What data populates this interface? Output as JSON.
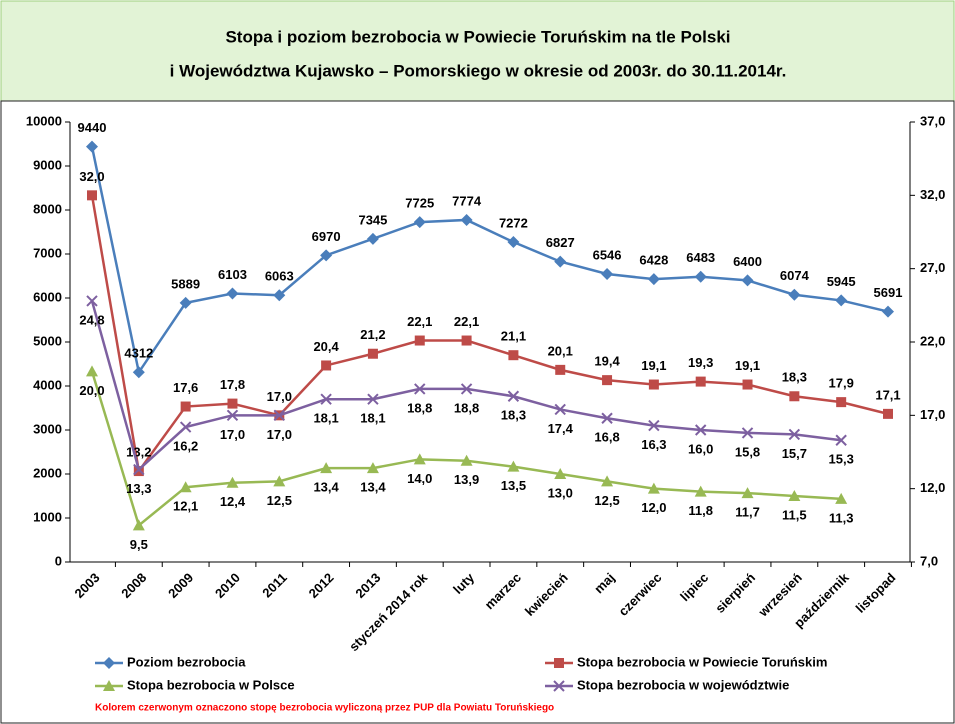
{
  "chart_data": {
    "type": "line",
    "title": [
      "Stopa i poziom bezrobocia w Powiecie Toruńskim na tle Polski",
      "i Województwa Kujawsko – Pomorskiego w okresie od 2003r. do 30.11.2014r."
    ],
    "note": "Kolorem czerwonym oznaczono stopę bezrobocia wyliczoną przez PUP dla Powiatu Toruńskiego",
    "categories": [
      "2003",
      "2008",
      "2009",
      "2010",
      "2011",
      "2012",
      "2013",
      "styczeń 2014 rok",
      "luty",
      "marzec",
      "kwiecień",
      "maj",
      "czerwiec",
      "lipiec",
      "sierpień",
      "wrzesień",
      "październik",
      "listopad"
    ],
    "ylim": [
      0,
      10000
    ],
    "yticks": [
      0,
      1000,
      2000,
      3000,
      4000,
      5000,
      6000,
      7000,
      8000,
      9000,
      10000
    ],
    "y2lim": [
      7,
      37
    ],
    "y2ticks": [
      {
        "value": 7,
        "label": "7,0"
      },
      {
        "value": 12,
        "label": "12,0"
      },
      {
        "value": 17,
        "label": "17,0"
      },
      {
        "value": 22,
        "label": "22,0"
      },
      {
        "value": 27,
        "label": "27,0"
      },
      {
        "value": 32,
        "label": "32,0"
      },
      {
        "value": 37,
        "label": "37,0"
      }
    ],
    "series": [
      {
        "name": "Poziom bezrobocia",
        "color": "#4a7ebb",
        "marker": "diamond",
        "values": [
          9440,
          4312,
          5889,
          6103,
          6063,
          6970,
          7345,
          7725,
          7774,
          7272,
          6827,
          6546,
          6428,
          6483,
          6400,
          6074,
          5945,
          5691
        ]
      },
      {
        "name": "Stopa bezrobocia w Powiecie Toruńskim",
        "color": "#be4b48",
        "marker": "square",
        "axis": "y2",
        "last_label_color": "#ff0000",
        "values": [
          32.0,
          13.2,
          17.6,
          17.8,
          17.0,
          20.4,
          21.2,
          22.1,
          22.1,
          21.1,
          20.1,
          19.4,
          19.1,
          19.3,
          19.1,
          18.3,
          17.9,
          17.1
        ],
        "value_labels": [
          "32,0",
          "13,2",
          "17,6",
          "17,8",
          "17,0",
          "20,4",
          "21,2",
          "22,1",
          "22,1",
          "21,1",
          "20,1",
          "19,4",
          "19,1",
          "19,3",
          "19,1",
          "18,3",
          "17,9",
          "17,1"
        ]
      },
      {
        "name": "Stopa bezrobocia w Polsce",
        "color": "#98b954",
        "marker": "triangle",
        "axis": "y2",
        "values": [
          20.0,
          9.5,
          12.1,
          12.4,
          12.5,
          13.4,
          13.4,
          14.0,
          13.9,
          13.5,
          13.0,
          12.5,
          12.0,
          11.8,
          11.7,
          11.5,
          11.3,
          null
        ],
        "value_labels": [
          "20,0",
          "9,5",
          "12,1",
          "12,4",
          "12,5",
          "13,4",
          "13,4",
          "14,0",
          "13,9",
          "13,5",
          "13,0",
          "12,5",
          "12,0",
          "11,8",
          "11,7",
          "11,5",
          "11,3",
          null
        ]
      },
      {
        "name": "Stopa bezrobocia w województwie",
        "color": "#7d60a0",
        "marker": "x",
        "axis": "y2",
        "values": [
          24.8,
          13.3,
          16.2,
          17.0,
          17.0,
          18.1,
          18.1,
          18.8,
          18.8,
          18.3,
          17.4,
          16.8,
          16.3,
          16.0,
          15.8,
          15.7,
          15.3,
          null
        ],
        "value_labels": [
          "24,8",
          "13,3",
          "16,2",
          "17,0",
          "17,0",
          "18,1",
          "18,1",
          "18,8",
          "18,8",
          "18,3",
          "17,4",
          "16,8",
          "16,3",
          "16,0",
          "15,8",
          "15,7",
          "15,3",
          null
        ]
      }
    ]
  }
}
